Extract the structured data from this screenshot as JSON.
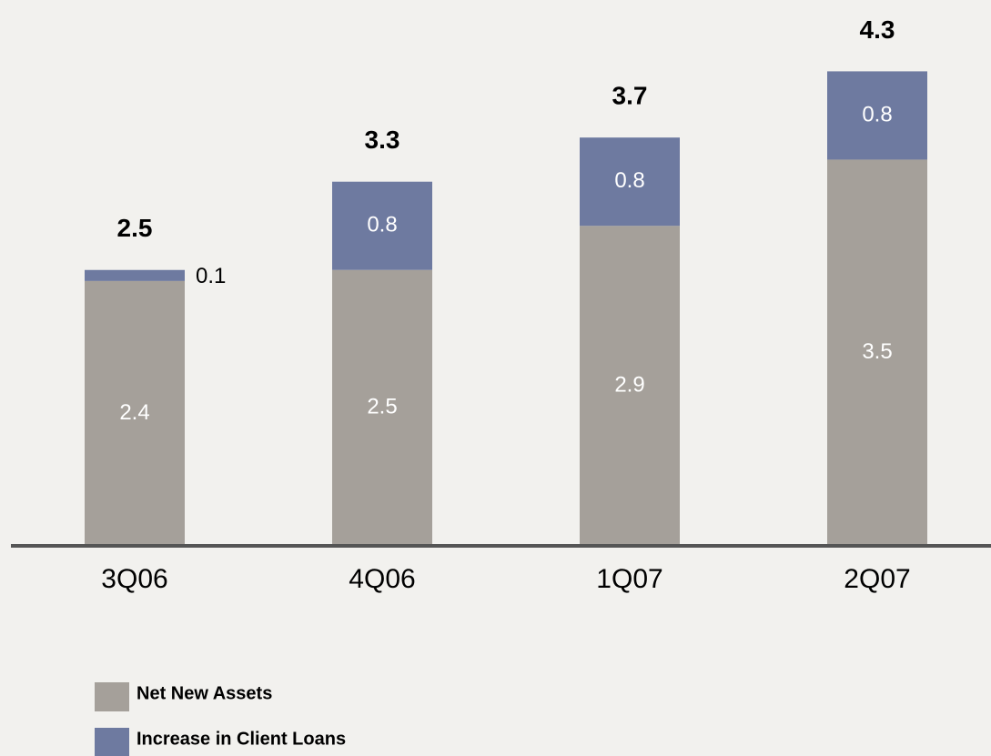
{
  "chart_data": {
    "type": "stacked-bar",
    "categories": [
      "3Q06",
      "4Q06",
      "1Q07",
      "2Q07"
    ],
    "series": [
      {
        "name": "Net New Assets",
        "color": "#a5a09a",
        "values": [
          2.4,
          2.5,
          2.9,
          3.5
        ]
      },
      {
        "name": "Increase in Client Loans",
        "color": "#6e7aa0",
        "values": [
          0.1,
          0.8,
          0.8,
          0.8
        ]
      }
    ],
    "totals": [
      2.5,
      3.3,
      3.7,
      4.3
    ]
  }
}
